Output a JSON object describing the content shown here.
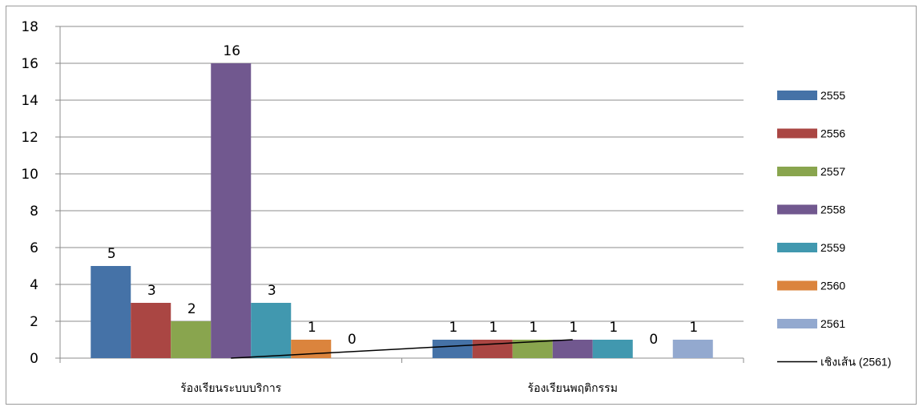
{
  "chart_data": {
    "type": "bar",
    "categories": [
      "ร้องเรียนระบบบริการ",
      "ร้องเรียนพฤติกรรม"
    ],
    "series": [
      {
        "name": "2555",
        "values": [
          5,
          1
        ],
        "color": "#4572A7"
      },
      {
        "name": "2556",
        "values": [
          3,
          1
        ],
        "color": "#AA4643"
      },
      {
        "name": "2557",
        "values": [
          2,
          1
        ],
        "color": "#89A54E"
      },
      {
        "name": "2558",
        "values": [
          16,
          1
        ],
        "color": "#71588F"
      },
      {
        "name": "2559",
        "values": [
          3,
          1
        ],
        "color": "#4198AF"
      },
      {
        "name": "2560",
        "values": [
          1,
          0
        ],
        "color": "#DB843D"
      },
      {
        "name": "2561",
        "values": [
          0,
          1
        ],
        "color": "#93A9CF"
      }
    ],
    "trendline": {
      "name": "เชิงเส้น (2561)",
      "series": "2561",
      "color": "#000000"
    },
    "ylim": [
      0,
      18
    ],
    "yticks": [
      "0",
      "2",
      "4",
      "6",
      "8",
      "10",
      "12",
      "14",
      "16",
      "18"
    ],
    "grid": true,
    "legend": "right"
  }
}
